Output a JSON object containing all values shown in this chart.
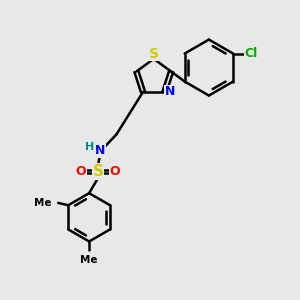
{
  "bg_color": "#e8e8e8",
  "bond_color": "#000000",
  "bond_width": 1.8,
  "atom_colors": {
    "S": "#cccc00",
    "N": "#0000ff",
    "O": "#ff0000",
    "Cl": "#00aa00",
    "H": "#008888"
  },
  "font_size": 8,
  "xlim": [
    0,
    10
  ],
  "ylim": [
    0,
    10
  ]
}
